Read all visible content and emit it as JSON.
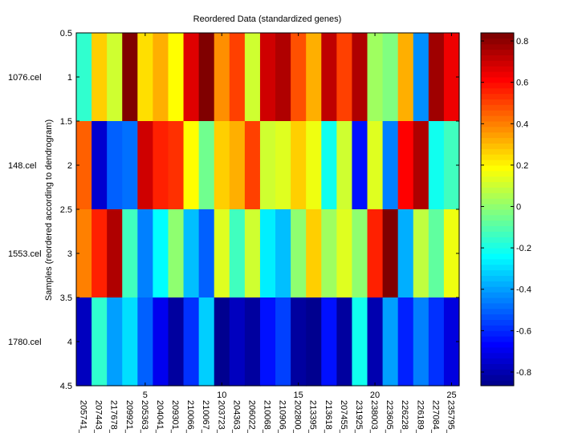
{
  "chart_data": {
    "type": "heatmap",
    "title": "Reordered Data (standardized genes)",
    "xlabel": "",
    "ylabel": "Samples (reordered according to dendrogram)",
    "colormap": "jet",
    "clim": [
      -0.866,
      0.839
    ],
    "ylim": [
      0.5,
      4.5
    ],
    "xlim": [
      0.5,
      25.5
    ],
    "y_ticks": [
      "0.5",
      "1",
      "1.5",
      "2",
      "2.5",
      "3",
      "3.5",
      "4",
      "4.5"
    ],
    "y_tick_values": [
      0.5,
      1,
      1.5,
      2,
      2.5,
      3,
      3.5,
      4,
      4.5
    ],
    "x_ticks": [
      "5",
      "10",
      "15",
      "20",
      "25"
    ],
    "x_tick_values": [
      5,
      10,
      15,
      20,
      25
    ],
    "row_labels": [
      "1076.cel",
      "148.cel",
      "1553.cel",
      "1780.cel"
    ],
    "column_labels": [
      "205741_",
      "207443_",
      "217678_",
      "209921_",
      "205363_",
      "204041_",
      "209301_",
      "210066_",
      "210067_",
      "203723_",
      "204363_",
      "206022_",
      "210068_",
      "210906_",
      "202800_",
      "213395_",
      "213618_",
      "207455_",
      "231925_",
      "238003_",
      "223605_",
      "226228_",
      "226189_",
      "227084_",
      "235795_"
    ],
    "colorbar_ticks": [
      "0.8",
      "0.6",
      "0.4",
      "0.2",
      "0",
      "-0.2",
      "-0.4",
      "-0.6",
      "-0.8"
    ],
    "colorbar_tick_values": [
      0.8,
      0.6,
      0.4,
      0.2,
      0,
      -0.2,
      -0.4,
      -0.6,
      -0.8
    ],
    "values": [
      [
        -0.16,
        0.266,
        0.107,
        0.826,
        0.24,
        0.32,
        0.187,
        0.666,
        0.826,
        0.373,
        0.506,
        0.107,
        0.693,
        0.746,
        0.48,
        0.32,
        0.719,
        0.506,
        0.746,
        0.027,
        -0.027,
        0.32,
        -0.426,
        0.773,
        0.64
      ],
      [
        0.453,
        -0.746,
        -0.506,
        -0.48,
        0.693,
        0.56,
        0.533,
        0.187,
        -0.053,
        0.266,
        0.32,
        0.506,
        0.107,
        0.133,
        0.266,
        0.16,
        -0.213,
        0.107,
        -0.64,
        0.133,
        -0.453,
        0.613,
        0.746,
        -0.213,
        -0.133
      ],
      [
        0.4,
        0.56,
        0.746,
        -0.133,
        -0.453,
        -0.24,
        0.0,
        -0.346,
        -0.506,
        0.133,
        -0.133,
        0.107,
        -0.267,
        -0.346,
        0.0,
        0.266,
        0.027,
        0.133,
        0.0,
        0.56,
        0.826,
        -0.373,
        0.08,
        -0.08,
        0.16
      ],
      [
        -0.773,
        -0.16,
        -0.4,
        -0.293,
        -0.506,
        -0.693,
        -0.826,
        -0.586,
        -0.32,
        -0.853,
        -0.773,
        -0.826,
        -0.64,
        -0.56,
        -0.826,
        -0.853,
        -0.64,
        -0.826,
        -0.213,
        -0.799,
        -0.4,
        -0.613,
        -0.453,
        -0.586,
        -0.719
      ]
    ]
  }
}
